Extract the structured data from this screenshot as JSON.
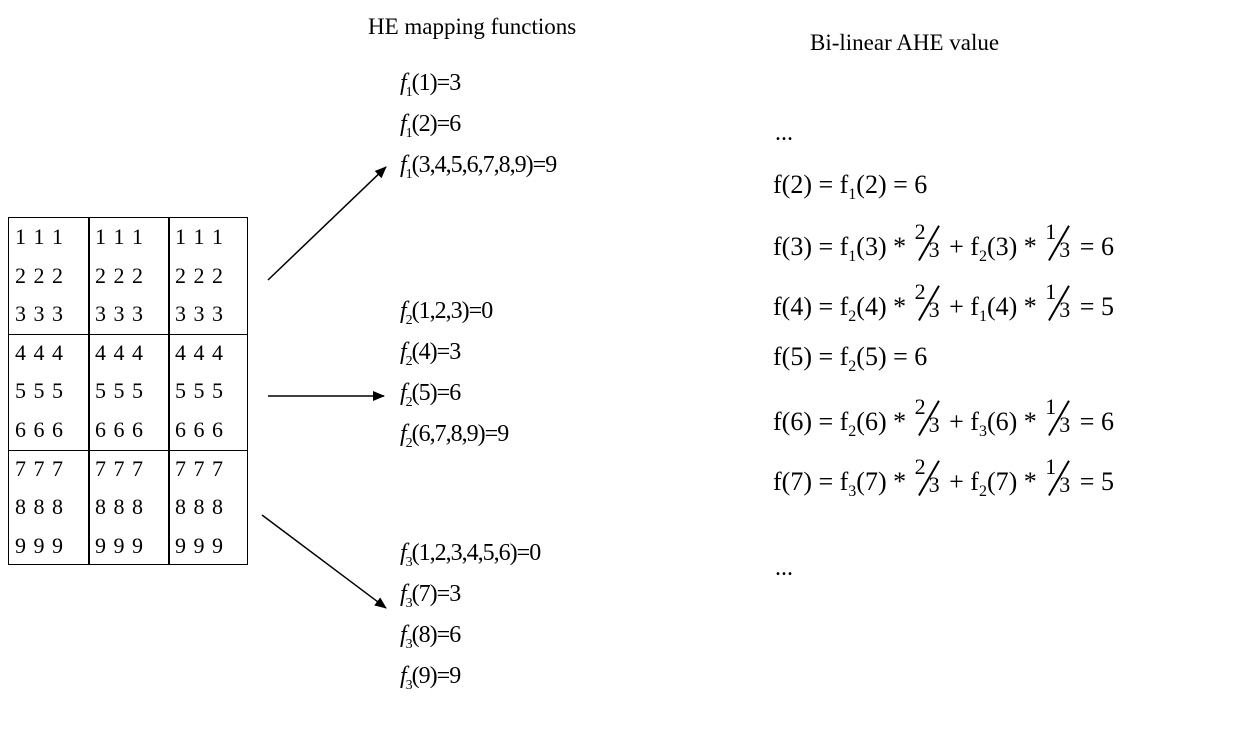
{
  "headings": {
    "mapping": "HE mapping functions",
    "bilinear": "Bi-linear AHE value"
  },
  "grid": {
    "rows": [
      [
        "1 1 1",
        "1 1 1",
        "1 1 1"
      ],
      [
        "2 2 2",
        "2 2 2",
        "2 2 2"
      ],
      [
        "3 3 3",
        "3 3 3",
        "3 3 3"
      ],
      [
        "4 4 4",
        "4 4 4",
        "4 4 4"
      ],
      [
        "5 5 5",
        "5 5 5",
        "5 5 5"
      ],
      [
        "6 6 6",
        "6 6 6",
        "6 6 6"
      ],
      [
        "7 7 7",
        "7 7 7",
        "7 7 7"
      ],
      [
        "8 8 8",
        "8 8 8",
        "8 8 8"
      ],
      [
        "9 9 9",
        "9 9 9",
        "9 9 9"
      ]
    ]
  },
  "mapping_groups": [
    [
      {
        "f": "f",
        "sub": "1",
        "rest": "(1)=3"
      },
      {
        "f": "f",
        "sub": "1",
        "rest": "(2)=6"
      },
      {
        "f": "f",
        "sub": "1",
        "rest": "(3,4,5,6,7,8,9)=9"
      }
    ],
    [
      {
        "f": "f",
        "sub": "2",
        "rest": "(1,2,3)=0"
      },
      {
        "f": "f",
        "sub": "2",
        "rest": "(4)=3"
      },
      {
        "f": "f",
        "sub": "2",
        "rest": "(5)=6"
      },
      {
        "f": "f",
        "sub": "2",
        "rest": "(6,7,8,9)=9"
      }
    ],
    [
      {
        "f": "f",
        "sub": "3",
        "rest": "(1,2,3,4,5,6)=0"
      },
      {
        "f": "f",
        "sub": "3",
        "rest": "(7)=3"
      },
      {
        "f": "f",
        "sub": "3",
        "rest": "(8)=6"
      },
      {
        "f": "f",
        "sub": "3",
        "rest": "(9)=9"
      }
    ]
  ],
  "ellipsis_top": "...",
  "equations": [
    [
      "f(2) = f",
      {
        "sub": "1"
      },
      "(2) = 6"
    ],
    [
      "f(3) = f",
      {
        "sub": "1"
      },
      "(3) * ",
      {
        "num": "2",
        "den": "3"
      },
      " + f",
      {
        "sub": "2"
      },
      "(3) * ",
      {
        "num": "1",
        "den": "3"
      },
      " = 6"
    ],
    [
      "f(4) = f",
      {
        "sub": "2"
      },
      "(4) * ",
      {
        "num": "2",
        "den": "3"
      },
      " + f",
      {
        "sub": "1"
      },
      "(4) * ",
      {
        "num": "1",
        "den": "3"
      },
      " = 5"
    ],
    [
      "f(5) = f",
      {
        "sub": "2"
      },
      "(5) = 6"
    ],
    [
      "f(6) = f",
      {
        "sub": "2"
      },
      "(6) * ",
      {
        "num": "2",
        "den": "3"
      },
      " + f",
      {
        "sub": "3"
      },
      "(6) * ",
      {
        "num": "1",
        "den": "3"
      },
      " = 6"
    ],
    [
      "f(7) = f",
      {
        "sub": "3"
      },
      "(7) * ",
      {
        "num": "2",
        "den": "3"
      },
      " + f",
      {
        "sub": "2"
      },
      "(7) * ",
      {
        "num": "1",
        "den": "3"
      },
      " = 5"
    ]
  ],
  "ellipsis_bottom": "..."
}
